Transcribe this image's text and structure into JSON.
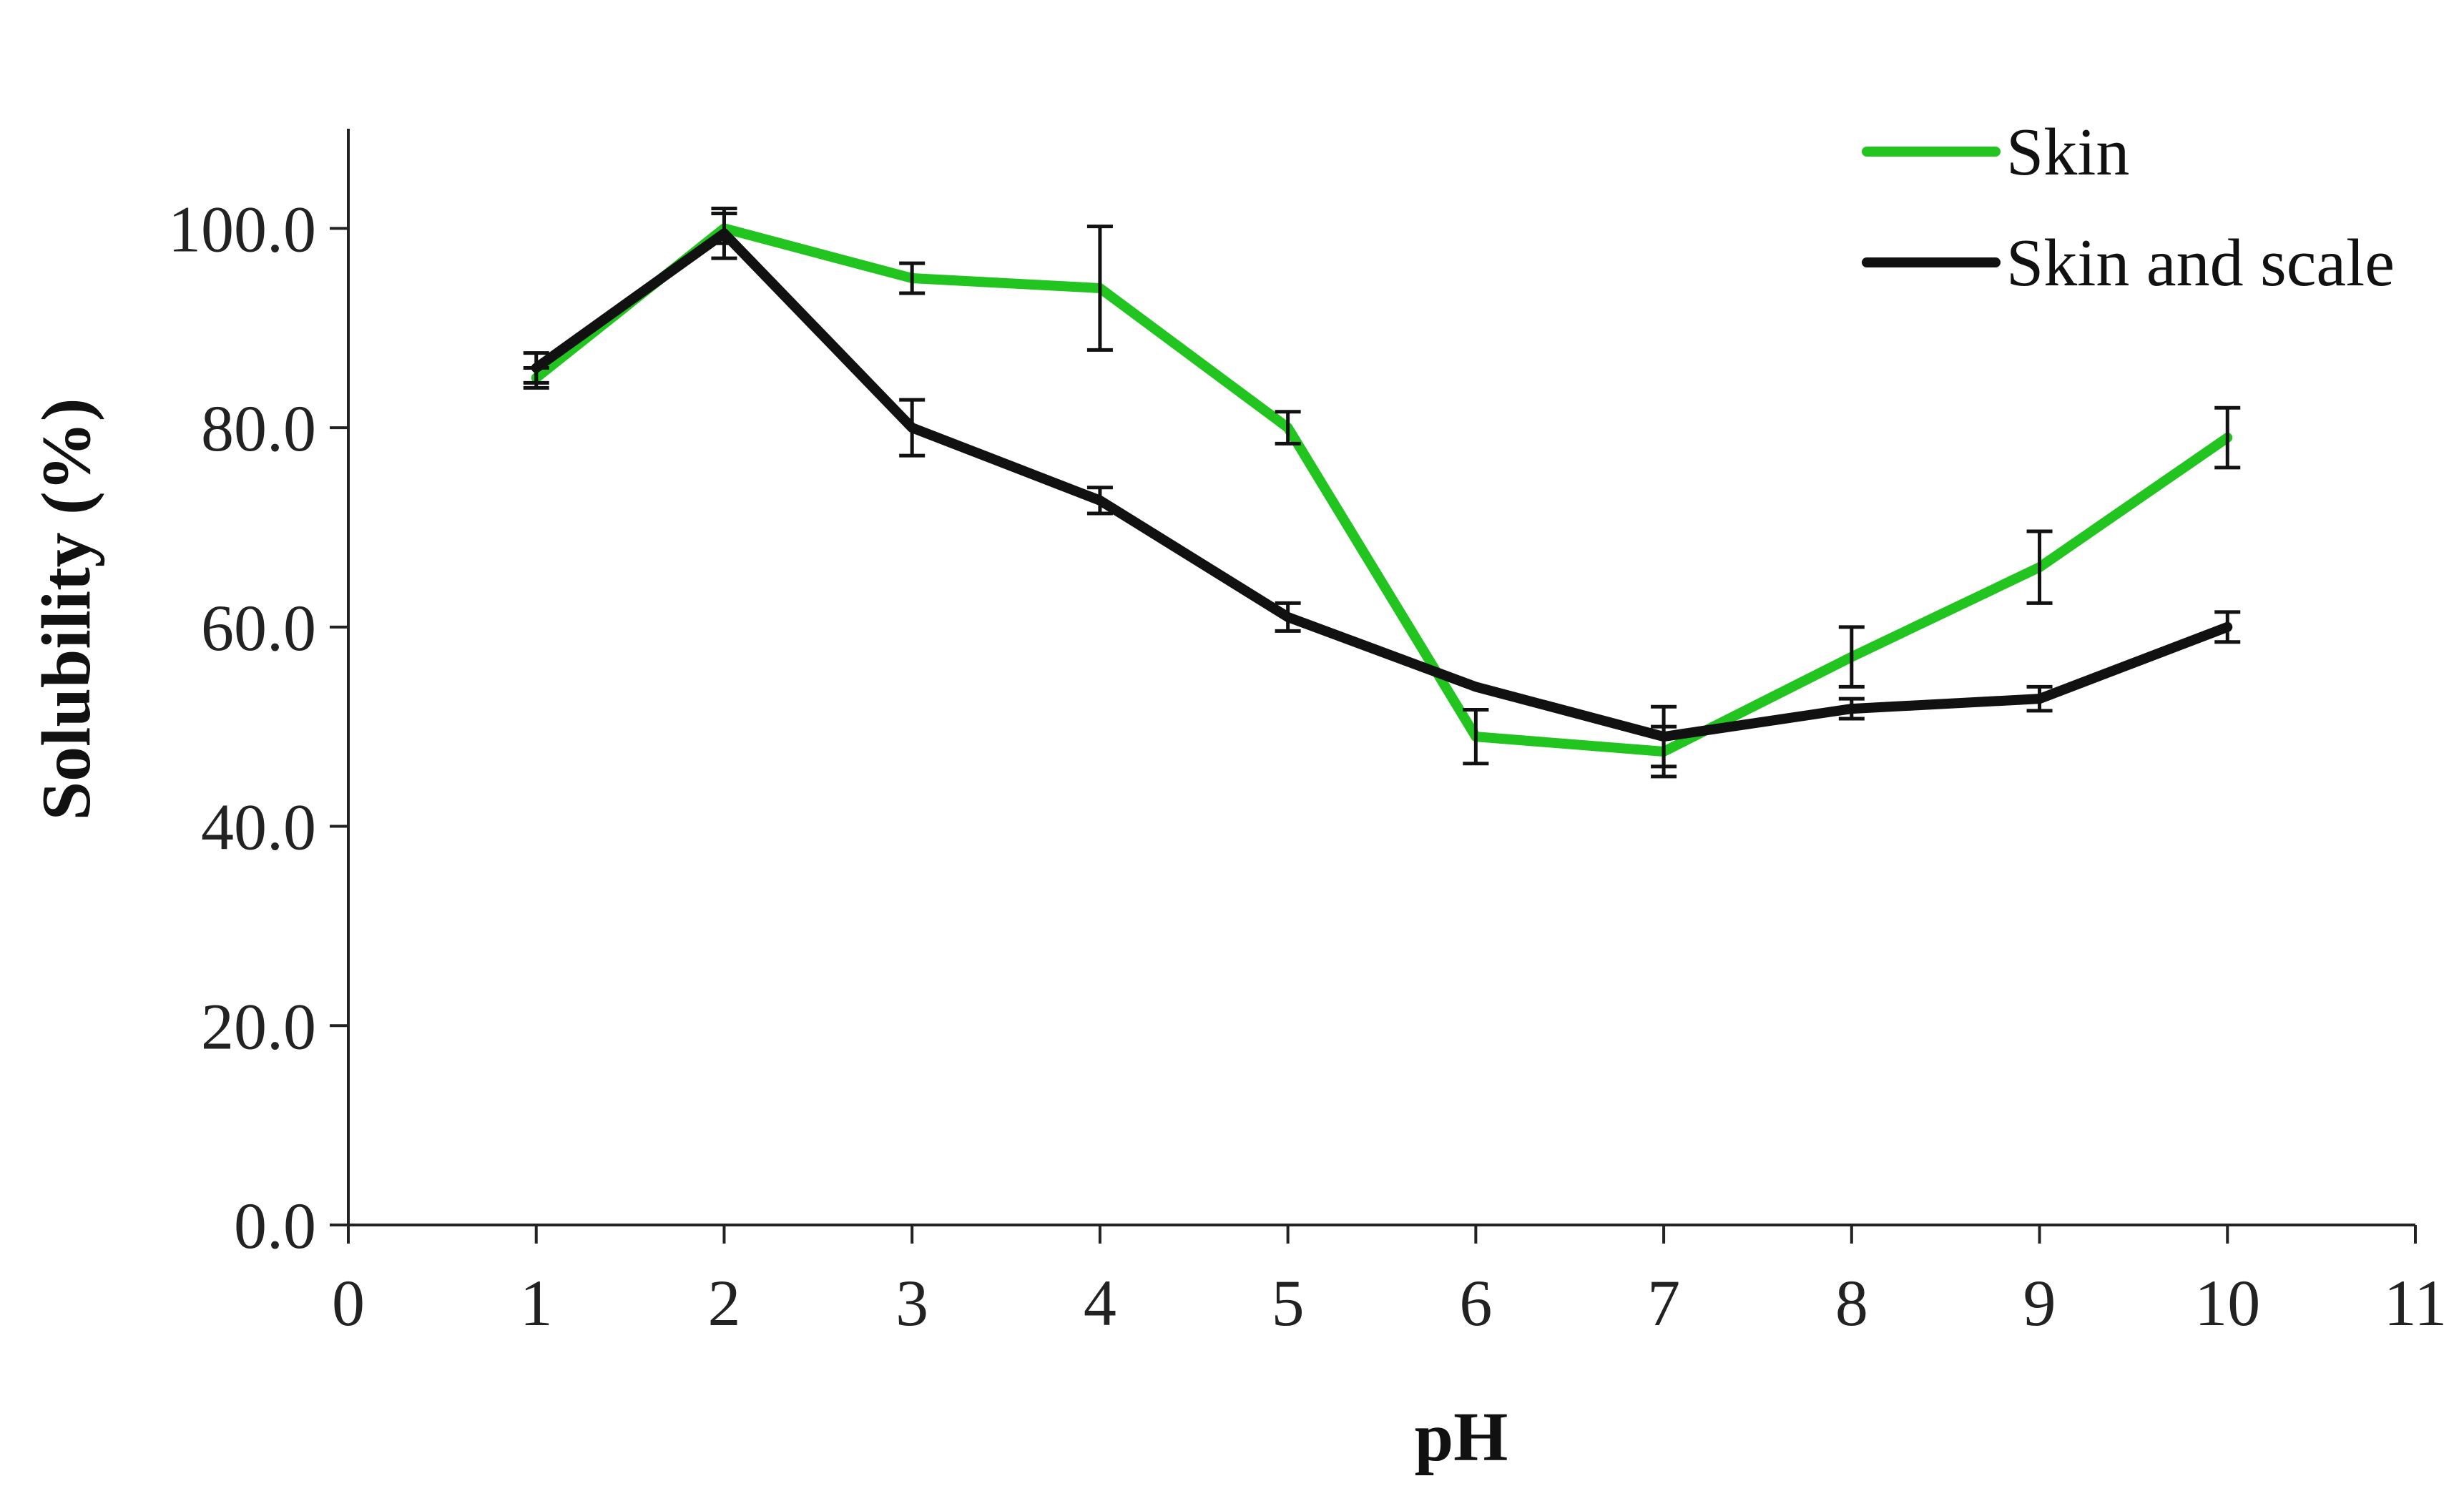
{
  "chart_data": {
    "type": "line",
    "title": "",
    "xlabel": "pH",
    "ylabel": "Solubility (%)",
    "xlim": [
      0,
      11
    ],
    "ylim": [
      0,
      110
    ],
    "x_ticks": [
      0,
      1,
      2,
      3,
      4,
      5,
      6,
      7,
      8,
      9,
      10,
      11
    ],
    "x_tick_labels": [
      "0",
      "1",
      "2",
      "3",
      "4",
      "5",
      "6",
      "7",
      "8",
      "9",
      "10",
      "11"
    ],
    "y_ticks": [
      0,
      20,
      40,
      60,
      80,
      100
    ],
    "y_tick_labels": [
      "0.0",
      "20.0",
      "40.0",
      "60.0",
      "80.0",
      "100.0"
    ],
    "grid": false,
    "legend_position": "top-right",
    "x": [
      1,
      2,
      3,
      4,
      5,
      6,
      7,
      8,
      9,
      10
    ],
    "series": [
      {
        "name": "Skin",
        "color": "#22c41f",
        "values": [
          85.0,
          100.0,
          95.0,
          94.0,
          80.0,
          49.0,
          47.5,
          57.0,
          66.0,
          79.0
        ],
        "error": [
          1.0,
          1.5,
          1.5,
          6.2,
          1.6,
          2.7,
          2.5,
          3.0,
          3.6,
          3.0
        ]
      },
      {
        "name": "Skin and scale",
        "color": "#111111",
        "values": [
          86.0,
          99.5,
          80.0,
          72.7,
          61.0,
          54.0,
          49.0,
          51.8,
          52.8,
          60.0
        ],
        "error": [
          1.5,
          2.5,
          2.8,
          1.3,
          1.4,
          0,
          3.0,
          1.0,
          1.2,
          1.5
        ]
      }
    ]
  }
}
